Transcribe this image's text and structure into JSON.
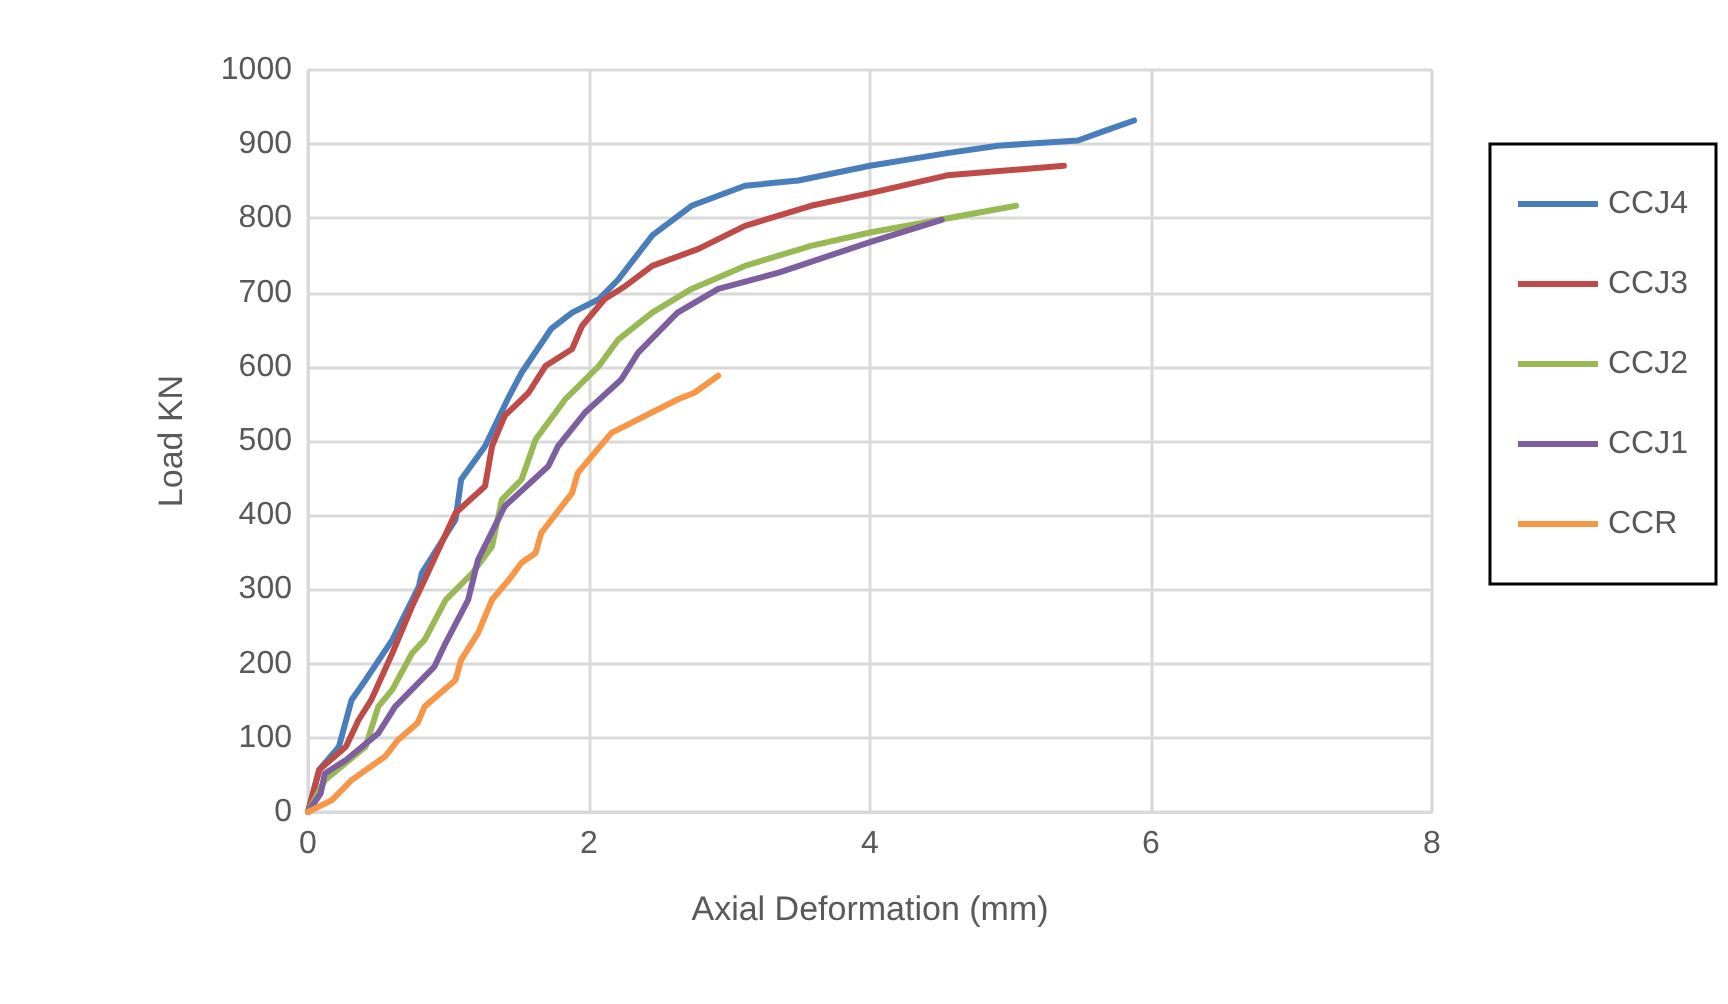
{
  "chart_data": {
    "type": "line",
    "xlabel": "Axial Deformation (mm)",
    "ylabel": "Load KN",
    "xlim": [
      0,
      8
    ],
    "xticks": [
      0,
      2,
      4,
      6,
      8
    ],
    "ylim": [
      0,
      1000
    ],
    "yticks": [
      0,
      100,
      200,
      300,
      400,
      500,
      600,
      700,
      800,
      900,
      1000
    ],
    "grid": true,
    "legend": "right",
    "marker": "none",
    "line_style": "solid",
    "series": [
      {
        "name": "CCJ4",
        "color": "#4a7ebb",
        "x": [
          0,
          0.08,
          0.22,
          0.31,
          0.41,
          0.6,
          0.79,
          0.81,
          1.05,
          1.09,
          1.26,
          1.42,
          1.52,
          1.73,
          1.88,
          2.07,
          2.21,
          2.45,
          2.73,
          3.11,
          3.49,
          4,
          4.55,
          4.91,
          5.48,
          5.67,
          5.88
        ],
        "values": [
          0,
          57,
          88,
          151,
          178,
          232,
          304,
          322,
          394,
          448,
          493,
          556,
          592,
          651,
          673,
          691,
          718,
          777,
          817,
          844,
          851,
          871,
          888,
          898,
          905,
          918,
          932
        ]
      },
      {
        "name": "CCJ3",
        "color": "#be4b48",
        "x": [
          0,
          0.08,
          0.27,
          0.36,
          0.45,
          0.6,
          0.74,
          0.83,
          1.05,
          1.26,
          1.31,
          1.4,
          1.57,
          1.69,
          1.88,
          1.95,
          2.11,
          2.26,
          2.45,
          2.78,
          3.11,
          3.58,
          4,
          4.55,
          5.38
        ],
        "values": [
          0,
          57,
          88,
          124,
          151,
          214,
          277,
          313,
          403,
          439,
          493,
          534,
          565,
          601,
          624,
          655,
          691,
          709,
          736,
          759,
          790,
          817,
          834,
          858,
          871
        ]
      },
      {
        "name": "CCJ2",
        "color": "#98b954",
        "x": [
          0,
          0.12,
          0.41,
          0.5,
          0.6,
          0.74,
          0.83,
          0.98,
          1.17,
          1.31,
          1.38,
          1.52,
          1.62,
          1.83,
          2.07,
          2.21,
          2.45,
          2.73,
          3.11,
          3.58,
          4,
          5.04
        ],
        "values": [
          0,
          43,
          88,
          142,
          165,
          214,
          232,
          286,
          322,
          358,
          421,
          448,
          502,
          556,
          601,
          637,
          673,
          705,
          736,
          763,
          781,
          817
        ]
      },
      {
        "name": "CCJ1",
        "color": "#7d5fa0",
        "x": [
          0,
          0.09,
          0.12,
          0.27,
          0.5,
          0.62,
          0.9,
          0.98,
          1.14,
          1.21,
          1.4,
          1.71,
          1.78,
          1.97,
          2.23,
          2.35,
          2.63,
          2.92,
          3.35,
          4,
          4.51
        ],
        "values": [
          0,
          25,
          52,
          70,
          106,
          142,
          196,
          228,
          286,
          340,
          412,
          466,
          493,
          538,
          583,
          619,
          673,
          705,
          727,
          768,
          798
        ]
      },
      {
        "name": "CCR",
        "color": "#f79646",
        "x": [
          0,
          0.17,
          0.31,
          0.55,
          0.64,
          0.78,
          0.83,
          1.05,
          1.09,
          1.21,
          1.31,
          1.43,
          1.52,
          1.62,
          1.66,
          1.88,
          1.92,
          2.16,
          2.63,
          2.75,
          2.92
        ],
        "values": [
          0,
          16,
          43,
          75,
          97,
          120,
          142,
          178,
          205,
          241,
          286,
          313,
          336,
          349,
          376,
          430,
          457,
          511,
          556,
          565,
          588
        ]
      }
    ]
  }
}
